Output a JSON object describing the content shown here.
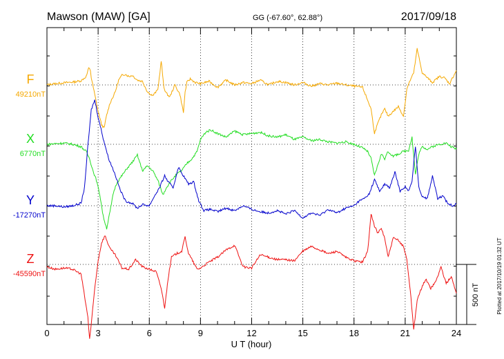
{
  "header": {
    "station": "Mawson (MAW)  [GA]",
    "coords": "GG (-67.60°,  62.88°)",
    "date": "2017/09/18"
  },
  "footer": {
    "plotted": "Plotted at 2017/10/19 01:32 UT"
  },
  "chart_data": {
    "type": "line",
    "title": "Mawson (MAW)  [GA]",
    "xlabel": "U T (hour)",
    "xlim": [
      0,
      24
    ],
    "x_ticks": [
      "0",
      "3",
      "6",
      "9",
      "12",
      "15",
      "18",
      "21",
      "24"
    ],
    "scale_bar_label": "500 nT",
    "scale_bar_nT": 500,
    "grid": "dotted vertical lines every 3 h and dotted baseline per component",
    "series": [
      {
        "name": "F",
        "baseline_label": "49210nT",
        "color": "#f5a800",
        "x": [
          0,
          0.3,
          0.8,
          1.2,
          1.6,
          2.0,
          2.3,
          2.45,
          2.55,
          2.6,
          2.8,
          3.0,
          3.2,
          3.35,
          3.5,
          3.7,
          4.0,
          4.2,
          4.4,
          4.6,
          4.8,
          5.0,
          5.3,
          5.6,
          5.9,
          6.2,
          6.5,
          6.7,
          6.85,
          7.0,
          7.2,
          7.5,
          7.8,
          8.0,
          8.1,
          8.2,
          8.4,
          8.7,
          9.0,
          9.5,
          10.0,
          10.5,
          11.0,
          11.5,
          12.0,
          12.5,
          13.0,
          13.5,
          14.0,
          14.5,
          15.0,
          15.5,
          16.0,
          16.5,
          17.0,
          17.5,
          18.0,
          18.5,
          19.0,
          19.2,
          19.4,
          19.6,
          19.8,
          20.0,
          20.3,
          20.6,
          20.9,
          21.1,
          21.3,
          21.5,
          21.7,
          22.0,
          22.3,
          22.6,
          23.0,
          23.3,
          23.6,
          24.0
        ],
        "y": [
          0,
          8,
          15,
          20,
          25,
          35,
          70,
          140,
          120,
          60,
          -80,
          -220,
          -330,
          -360,
          -250,
          -150,
          -60,
          40,
          80,
          90,
          70,
          80,
          40,
          30,
          -60,
          -90,
          -40,
          200,
          -20,
          -70,
          -100,
          0,
          -80,
          -230,
          -60,
          20,
          50,
          20,
          10,
          30,
          -20,
          40,
          0,
          20,
          10,
          40,
          0,
          30,
          20,
          0,
          20,
          -10,
          10,
          0,
          15,
          0,
          -10,
          -20,
          -200,
          -400,
          -320,
          -250,
          -200,
          -260,
          -220,
          -180,
          -260,
          -30,
          40,
          100,
          300,
          100,
          60,
          20,
          70,
          60,
          10,
          120
        ]
      },
      {
        "name": "X",
        "baseline_label": "6770nT",
        "color": "#22dd22",
        "x": [
          0,
          0.5,
          1.0,
          1.5,
          2.0,
          2.3,
          2.5,
          2.7,
          2.9,
          3.1,
          3.3,
          3.5,
          3.7,
          3.9,
          4.1,
          4.4,
          4.7,
          5.0,
          5.3,
          5.6,
          5.9,
          6.2,
          6.5,
          6.8,
          7.0,
          7.3,
          7.6,
          7.9,
          8.2,
          8.5,
          8.8,
          9.0,
          9.3,
          9.6,
          10.0,
          10.5,
          11.0,
          11.5,
          12.0,
          12.5,
          13.0,
          13.5,
          14.0,
          14.5,
          15.0,
          15.5,
          16.0,
          16.5,
          17.0,
          17.5,
          18.0,
          18.5,
          18.8,
          19.0,
          19.2,
          19.4,
          19.6,
          19.8,
          20.0,
          20.3,
          20.6,
          20.9,
          21.2,
          21.4,
          21.6,
          21.8,
          22.0,
          22.3,
          22.6,
          23.0,
          23.4,
          23.7,
          24.0
        ],
        "y": [
          0,
          5,
          10,
          0,
          -20,
          -60,
          -120,
          -220,
          -300,
          -420,
          -600,
          -700,
          -560,
          -400,
          -320,
          -260,
          -200,
          -150,
          -90,
          -220,
          -180,
          -220,
          -300,
          -420,
          -360,
          -300,
          -250,
          -220,
          -160,
          -120,
          -60,
          40,
          100,
          120,
          90,
          60,
          110,
          80,
          90,
          100,
          70,
          60,
          80,
          40,
          60,
          30,
          40,
          20,
          10,
          20,
          0,
          -30,
          -60,
          -120,
          -260,
          -170,
          -80,
          -120,
          -60,
          -100,
          -80,
          -60,
          -50,
          60,
          -250,
          -80,
          -20,
          -40,
          -20,
          0,
          10,
          -20,
          -40
        ]
      },
      {
        "name": "Y",
        "baseline_label": "-17270nT",
        "color": "#0000cc",
        "x": [
          0,
          0.5,
          1.0,
          1.5,
          2.0,
          2.2,
          2.4,
          2.6,
          2.8,
          3.0,
          3.3,
          3.6,
          4.0,
          4.3,
          4.6,
          5.0,
          5.3,
          5.6,
          6.0,
          6.3,
          6.6,
          6.9,
          7.1,
          7.4,
          7.7,
          8.0,
          8.3,
          8.6,
          8.9,
          9.2,
          9.6,
          10.0,
          10.5,
          11.0,
          11.5,
          12.0,
          12.5,
          13.0,
          13.5,
          14.0,
          14.5,
          15.0,
          15.5,
          16.0,
          16.5,
          17.0,
          17.5,
          18.0,
          18.3,
          18.6,
          18.9,
          19.2,
          19.5,
          19.8,
          20.1,
          20.4,
          20.7,
          21.0,
          21.2,
          21.4,
          21.6,
          21.8,
          22.0,
          22.3,
          22.6,
          22.9,
          23.2,
          23.5,
          23.8,
          24.0
        ],
        "y": [
          0,
          0,
          -10,
          0,
          20,
          150,
          500,
          800,
          880,
          740,
          560,
          400,
          260,
          130,
          40,
          20,
          -20,
          10,
          0,
          80,
          150,
          250,
          200,
          150,
          320,
          250,
          180,
          200,
          40,
          -40,
          -30,
          -50,
          -20,
          -40,
          0,
          -30,
          -50,
          -60,
          -40,
          -70,
          -40,
          -100,
          -60,
          -80,
          -30,
          -60,
          -20,
          0,
          40,
          60,
          100,
          220,
          120,
          180,
          150,
          280,
          120,
          160,
          120,
          200,
          500,
          150,
          80,
          60,
          250,
          60,
          80,
          20,
          0,
          20
        ]
      },
      {
        "name": "Z",
        "baseline_label": "-45590nT",
        "color": "#ee1111",
        "x": [
          0,
          0.5,
          1.0,
          1.5,
          2.0,
          2.2,
          2.4,
          2.5,
          2.6,
          2.8,
          3.0,
          3.2,
          3.4,
          3.7,
          4.0,
          4.4,
          4.8,
          5.2,
          5.6,
          6.0,
          6.4,
          6.7,
          6.9,
          7.1,
          7.3,
          7.6,
          7.9,
          8.1,
          8.3,
          8.5,
          8.8,
          9.0,
          9.5,
          10.0,
          10.5,
          11.0,
          11.5,
          12.0,
          12.5,
          13.0,
          13.5,
          14.0,
          14.5,
          15.0,
          15.5,
          16.0,
          16.5,
          17.0,
          17.5,
          18.0,
          18.5,
          18.8,
          19.0,
          19.2,
          19.4,
          19.6,
          19.8,
          20.0,
          20.3,
          20.6,
          20.9,
          21.1,
          21.3,
          21.5,
          21.7,
          21.9,
          22.2,
          22.5,
          22.8,
          23.1,
          23.4,
          23.7,
          24.0
        ],
        "y": [
          -20,
          -40,
          -30,
          -40,
          -80,
          -260,
          -440,
          -620,
          -500,
          -200,
          30,
          180,
          240,
          130,
          80,
          -30,
          -40,
          40,
          -20,
          -40,
          -60,
          -200,
          -360,
          -120,
          60,
          90,
          110,
          230,
          90,
          40,
          -40,
          -30,
          20,
          60,
          120,
          160,
          -20,
          -30,
          80,
          60,
          40,
          40,
          30,
          110,
          150,
          120,
          90,
          110,
          60,
          30,
          20,
          110,
          420,
          320,
          260,
          300,
          220,
          60,
          220,
          200,
          150,
          40,
          -220,
          -540,
          -300,
          -220,
          -120,
          -200,
          -140,
          -20,
          -160,
          -100,
          -240
        ]
      }
    ]
  }
}
